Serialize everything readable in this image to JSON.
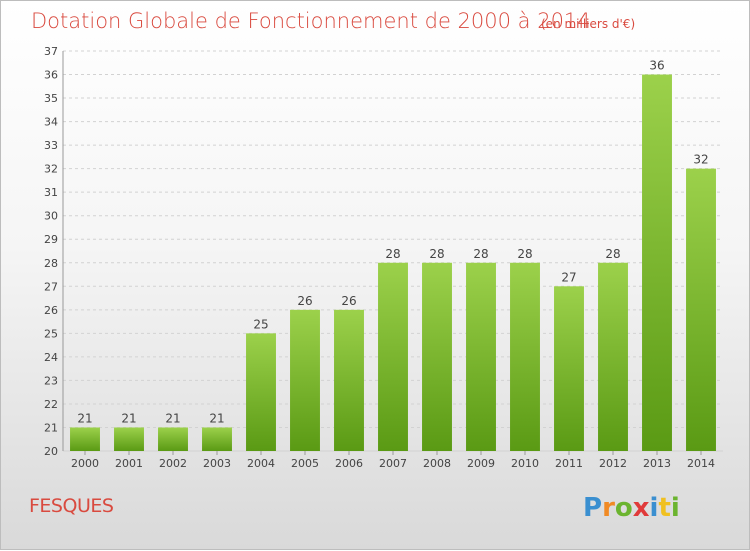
{
  "header": {
    "title": "Dotation Globale de Fonctionnement de 2000 à 2014",
    "unit": "(en milliers d'€)"
  },
  "footer": {
    "commune": "FESQUES",
    "logo_text": "Proxiti"
  },
  "colors": {
    "title": "#d94a3f",
    "bar_top": "#9cd14b",
    "bar_bottom": "#5a9a14",
    "grid": "#d2d2d2"
  },
  "chart_data": {
    "type": "bar",
    "categories": [
      "2000",
      "2001",
      "2002",
      "2003",
      "2004",
      "2005",
      "2006",
      "2007",
      "2008",
      "2009",
      "2010",
      "2011",
      "2012",
      "2013",
      "2014"
    ],
    "values": [
      21,
      21,
      21,
      21,
      25,
      26,
      26,
      28,
      28,
      28,
      28,
      27,
      28,
      36,
      32
    ],
    "ylim": [
      20,
      37
    ],
    "yticks": [
      20,
      21,
      22,
      23,
      24,
      25,
      26,
      27,
      28,
      29,
      30,
      31,
      32,
      33,
      34,
      35,
      36,
      37
    ],
    "grid": true,
    "data_labels": true
  }
}
